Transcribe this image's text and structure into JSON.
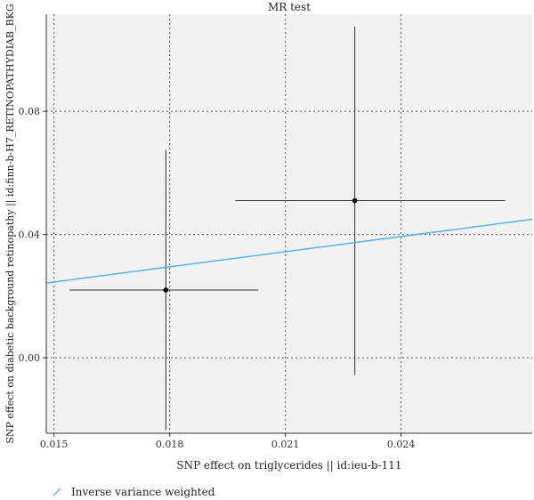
{
  "chart_data": {
    "type": "scatter",
    "title": "MR test",
    "xlabel": "SNP effect on triglycerides || id:ieu-b-111",
    "ylabel": "SNP effect on diabetic background retinopathy || id:finn-b-H7_RETINOPATHYDIAB_BKG",
    "xlim": [
      0.0148,
      0.0274
    ],
    "ylim": [
      -0.0245,
      0.1115
    ],
    "xticks": [
      0.015,
      0.018,
      0.021,
      0.024
    ],
    "xtick_labels": [
      "0.015",
      "0.018",
      "0.021",
      "0.024"
    ],
    "yticks": [
      0.0,
      0.04,
      0.08
    ],
    "ytick_labels": [
      "0.00",
      "0.04",
      "0.08"
    ],
    "grid": true,
    "points": [
      {
        "x": 0.0179,
        "y": 0.022,
        "x_low": 0.0154,
        "x_high": 0.0203,
        "y_low": -0.0235,
        "y_high": 0.0675
      },
      {
        "x": 0.0228,
        "y": 0.051,
        "x_low": 0.0197,
        "x_high": 0.0267,
        "y_low": -0.0055,
        "y_high": 0.1075
      }
    ],
    "lines": [
      {
        "name": "Inverse variance weighted",
        "slope": 1.64,
        "intercept": 0.0,
        "color": "#56B4E9"
      }
    ],
    "legend": {
      "position": "bottom-left",
      "entries": [
        "Inverse variance weighted"
      ]
    }
  }
}
